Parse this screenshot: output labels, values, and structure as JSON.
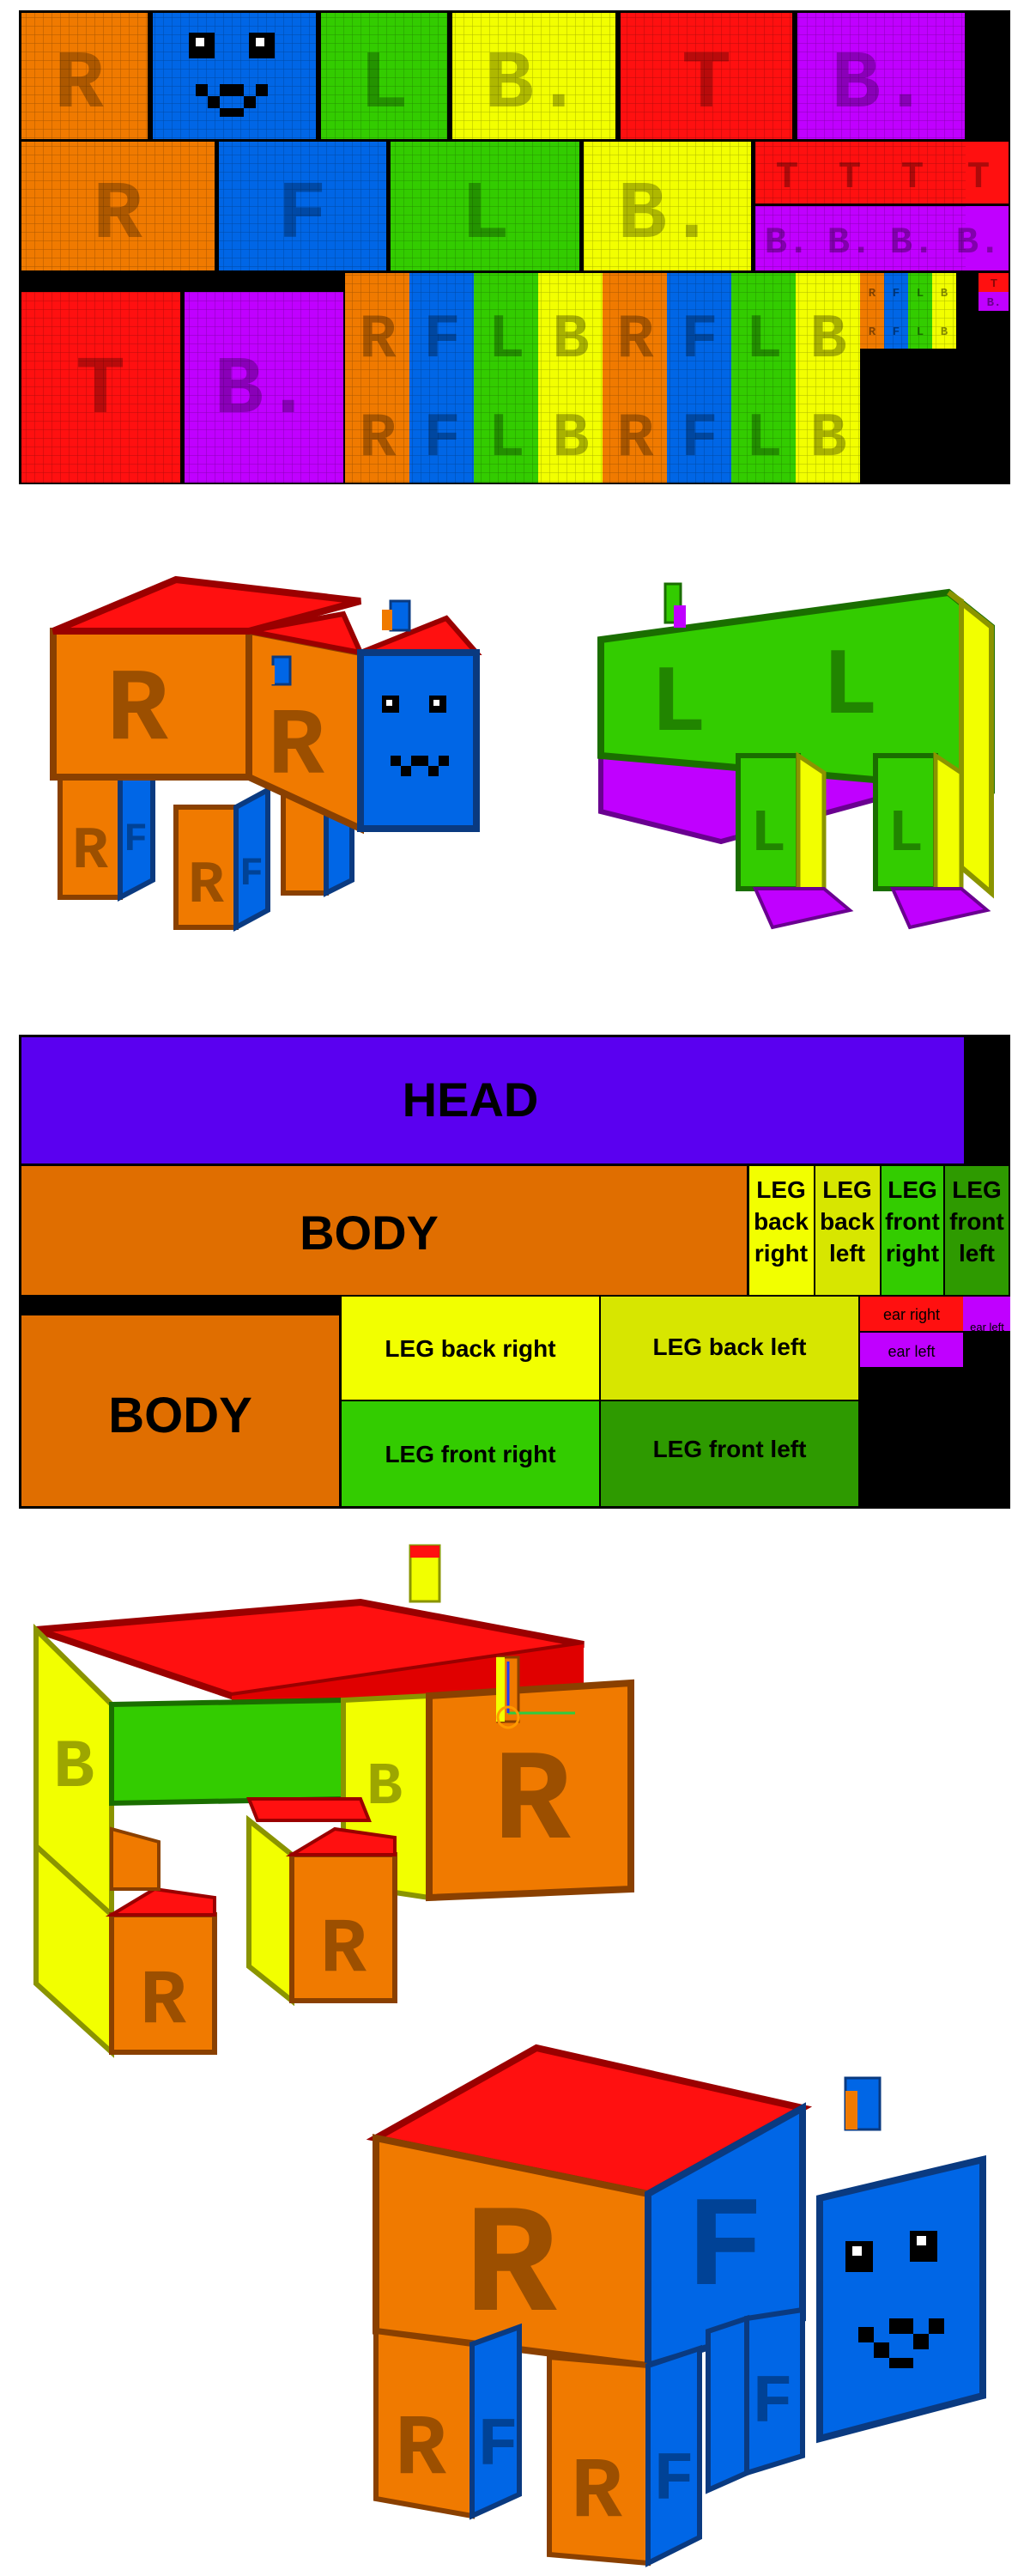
{
  "colors": {
    "orange": "#f07a00",
    "blue": "#0066e6",
    "green": "#33cc00",
    "darkgreen": "#2e9a00",
    "yellow": "#f2ff00",
    "olive": "#d7e600",
    "red": "#ff1010",
    "purple": "#c000ff",
    "headpurple": "#5a00f0",
    "black": "#000000",
    "white": "#ffffff"
  },
  "texture": {
    "row1": [
      "R",
      "",
      "L",
      "B.",
      "T",
      "B."
    ],
    "row2": [
      "R",
      "F",
      "L",
      "B.",
      "T",
      "T",
      "T",
      "T",
      "B.",
      "B.",
      "B.",
      "B."
    ],
    "row3": [
      "T",
      "B."
    ],
    "legs_top": [
      "R",
      "F",
      "L",
      "B",
      "R",
      "F",
      "L",
      "B"
    ],
    "legs_bottom": [
      "R",
      "F",
      "L",
      "B",
      "R",
      "F",
      "L",
      "B"
    ],
    "tiny": [
      "R",
      "F",
      "L",
      "B",
      "T",
      "B."
    ]
  },
  "uvmap": {
    "head": "HEAD",
    "body": "BODY",
    "body2": "BODY",
    "leg_back_right_l1": "LEG",
    "leg_back_right_l2": "back",
    "leg_back_right_l3": "right",
    "leg_back_left_l1": "LEG",
    "leg_back_left_l2": "back",
    "leg_back_left_l3": "left",
    "leg_front_right_l1": "LEG",
    "leg_front_right_l2": "front",
    "leg_front_right_l3": "right",
    "leg_front_left_l1": "LEG",
    "leg_front_left_l2": "front",
    "leg_front_left_l3": "left",
    "ear_right_small": "ear right",
    "ear_left_tiny": "ear left",
    "leg_back_right_wide": "LEG back right",
    "leg_back_left_wide": "LEG back left",
    "leg_front_right_wide": "LEG front right",
    "leg_front_left_wide": "LEG front left",
    "ear_left": "ear left"
  },
  "model_letters": {
    "right": "R",
    "front": "F",
    "left": "L",
    "back": "B",
    "top": "T"
  }
}
